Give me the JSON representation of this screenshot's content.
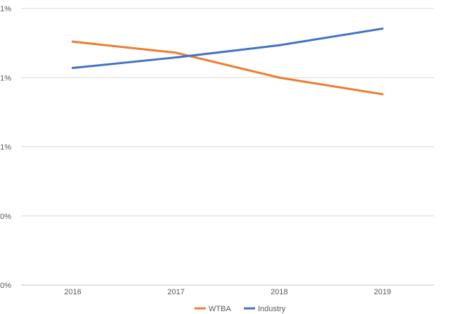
{
  "chart_data": {
    "type": "line",
    "categories": [
      "2016",
      "2017",
      "2018",
      "2019"
    ],
    "y_tick_labels": [
      "0%",
      "0%",
      "1%",
      "1%",
      "1%"
    ],
    "ylim": [
      0.0,
      1.0
    ],
    "grid": true,
    "legend_position": "bottom",
    "series": [
      {
        "name": "WTBA",
        "color": "#ED7D31",
        "values": [
          0.88,
          0.84,
          0.75,
          0.69
        ]
      },
      {
        "name": "Industry",
        "color": "#4472C4",
        "values": [
          0.785,
          0.823,
          0.867,
          0.927
        ]
      }
    ]
  }
}
